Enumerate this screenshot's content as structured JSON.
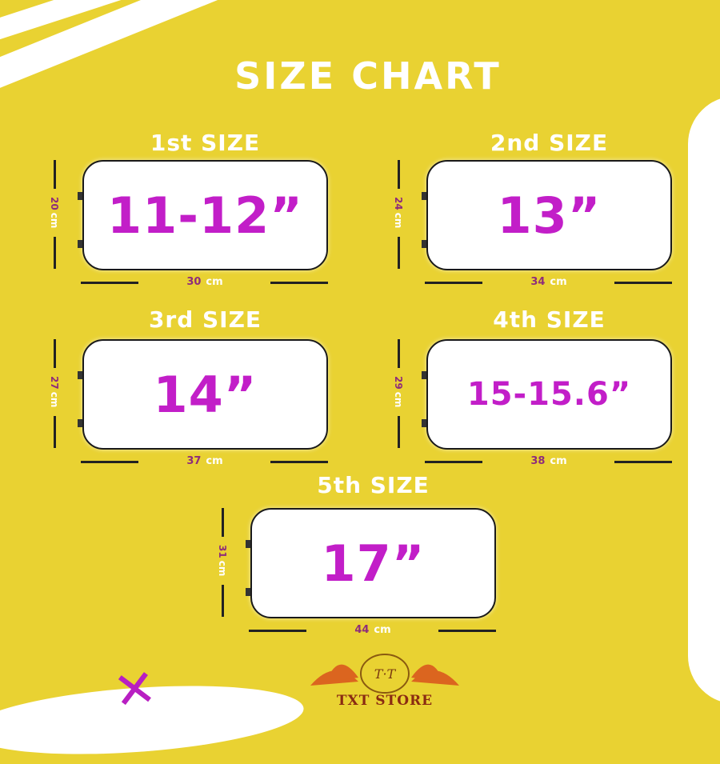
{
  "title": "SIZE CHART",
  "unit": "cm",
  "sizes": [
    {
      "label": "1st SIZE",
      "screen": "11-12”",
      "height": "20",
      "width": "30"
    },
    {
      "label": "2nd SIZE",
      "screen": "13”",
      "height": "24",
      "width": "34"
    },
    {
      "label": "3rd SIZE",
      "screen": "14”",
      "height": "27",
      "width": "37"
    },
    {
      "label": "4th SIZE",
      "screen": "15-15.6”",
      "height": "29",
      "width": "38"
    },
    {
      "label": "5th SIZE",
      "screen": "17”",
      "height": "31",
      "width": "44"
    }
  ],
  "brand": {
    "name": "TXT STORE",
    "monogram": "T T"
  },
  "colors": {
    "background": "#e9d232",
    "accent": "#c21ec8",
    "text": "#ffffff"
  }
}
